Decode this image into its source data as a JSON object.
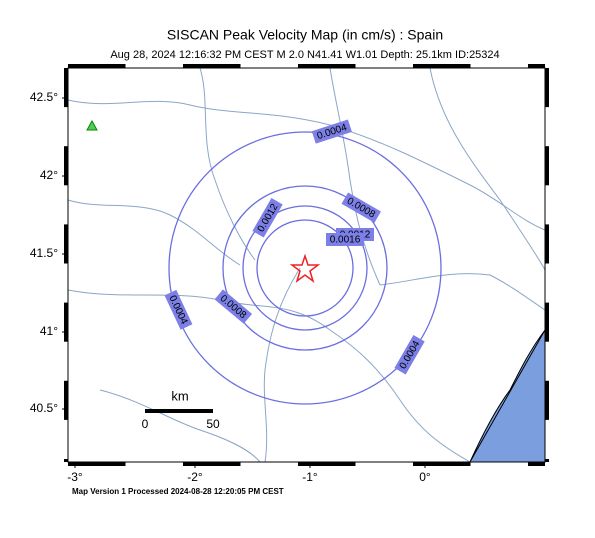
{
  "header": {
    "title": "SISCAN Peak Velocity Map (in cm/s) : Spain",
    "subtitle": "Aug 28, 2024 12:16:32 PM CEST   M 2.0   N41.41 W1.01   Depth: 25.1km   ID:25324"
  },
  "map": {
    "lon_labels": [
      "-3°",
      "-2°",
      "-1°",
      "0°"
    ],
    "lat_labels": [
      "42.5°",
      "42°",
      "41.5°",
      "41°",
      "40.5°"
    ],
    "contour_labels": [
      "0.0004",
      "0.0004",
      "0.0004",
      "0.0008",
      "0.0008",
      "0.0012",
      "0.0012",
      "0.0016"
    ],
    "scale_bar": {
      "unit": "km",
      "start": "0",
      "end": "50"
    }
  },
  "footer": "Map Version 1 Processed 2024-08-28 12:20:05 PM CEST"
}
